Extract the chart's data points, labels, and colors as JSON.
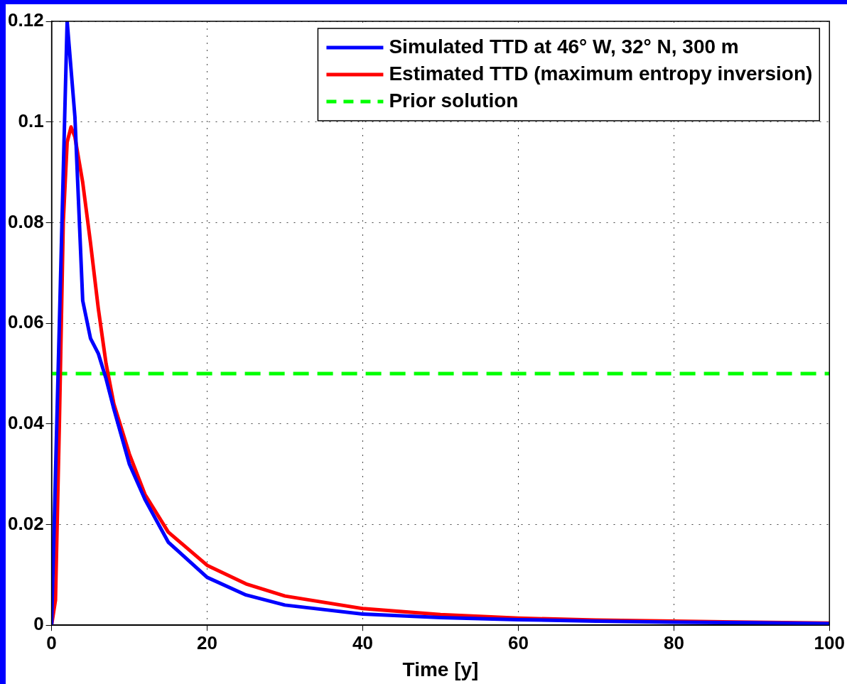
{
  "chart_data": {
    "type": "line",
    "xlabel": "Time [y]",
    "xlim": [
      0,
      100
    ],
    "xticks": [
      0,
      20,
      40,
      60,
      80,
      100
    ],
    "ylim": [
      0,
      0.12
    ],
    "yticks": [
      0,
      0.02,
      0.04,
      0.06,
      0.08,
      0.1,
      0.12
    ],
    "grid": true,
    "legend": "top right",
    "marker": "none",
    "series": [
      {
        "name": "Simulated TTD at 46° W, 32° N, 300 m",
        "color": "#0000ff",
        "line_style": "solid",
        "x": [
          0,
          2,
          3,
          4,
          5,
          6,
          7,
          8,
          10,
          12,
          15,
          20,
          25,
          30,
          40,
          50,
          60,
          70,
          80,
          90,
          100
        ],
        "values": [
          0,
          0.12,
          0.101,
          0.0645,
          0.057,
          0.054,
          0.049,
          0.043,
          0.032,
          0.025,
          0.0165,
          0.0095,
          0.006,
          0.004,
          0.0022,
          0.0015,
          0.0011,
          0.0008,
          0.0006,
          0.0005,
          0.0003
        ]
      },
      {
        "name": "Estimated TTD (maximum entropy inversion)",
        "color": "#ff0000",
        "line_style": "solid",
        "x": [
          0,
          0.5,
          1,
          1.5,
          2,
          2.5,
          3,
          4,
          5,
          6,
          7,
          8,
          10,
          12,
          15,
          20,
          25,
          30,
          40,
          50,
          60,
          70,
          80,
          90,
          100
        ],
        "values": [
          0,
          0.005,
          0.04,
          0.08,
          0.096,
          0.099,
          0.097,
          0.088,
          0.076,
          0.063,
          0.052,
          0.044,
          0.034,
          0.026,
          0.0185,
          0.0119,
          0.0082,
          0.0058,
          0.0033,
          0.0021,
          0.0014,
          0.001,
          0.0008,
          0.0006,
          0.0004
        ]
      },
      {
        "name": "Prior solution",
        "color": "#00ff00",
        "line_style": "dashed",
        "x": [
          0,
          100
        ],
        "values": [
          0.05,
          0.05
        ]
      }
    ]
  }
}
